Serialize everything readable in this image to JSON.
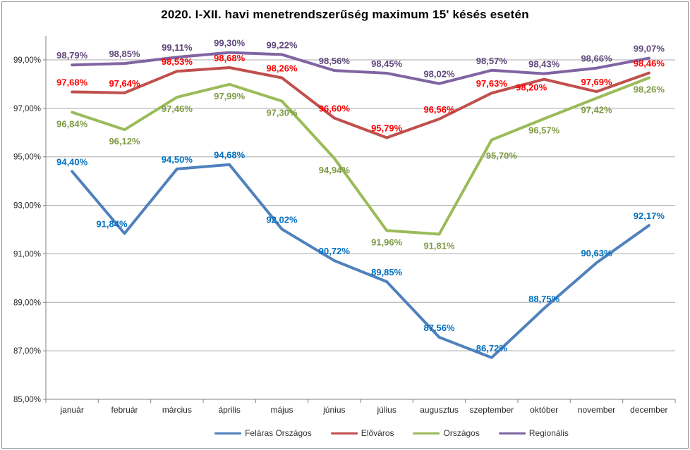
{
  "title": "2020. I-XII. havi menetrendszerűség  maximum  15' késés esetén",
  "chart_data": {
    "type": "line",
    "title": "2020. I-XII. havi menetrendszerűség  maximum  15' késés esetén",
    "categories": [
      "január",
      "február",
      "március",
      "április",
      "május",
      "június",
      "július",
      "augusztus",
      "szeptember",
      "október",
      "november",
      "december"
    ],
    "series": [
      {
        "name": "Feláras Országos",
        "line_color": "#4F81BD",
        "label_color": "#0070C0",
        "label_side": "above",
        "values": [
          94.4,
          91.84,
          94.5,
          94.68,
          92.02,
          90.72,
          89.85,
          87.56,
          86.72,
          88.75,
          90.63,
          92.17
        ],
        "labels": [
          "94,40%",
          "91,84%",
          "94,50%",
          "94,68%",
          "92,02%",
          "90,72%",
          "89,85%",
          "87,56%",
          "86,72%",
          "88,75%",
          "90,63%",
          "92,17%"
        ],
        "label_overrides": {
          "1": {
            "dx": -18
          }
        }
      },
      {
        "name": "Előváros",
        "line_color": "#C0504D",
        "label_color": "#FF0000",
        "label_side": "above",
        "values": [
          97.68,
          97.64,
          98.53,
          98.68,
          98.26,
          96.6,
          95.79,
          96.56,
          97.63,
          98.2,
          97.69,
          98.46
        ],
        "labels": [
          "97,68%",
          "97,64%",
          "98,53%",
          "98,68%",
          "98,26%",
          "96,60%",
          "95,79%",
          "96,56%",
          "97,63%",
          "98,20%",
          "97,69%",
          "98,46%"
        ],
        "label_overrides": {
          "9": {
            "side": "below",
            "dx": -18,
            "dy": 16
          }
        }
      },
      {
        "name": "Országos",
        "line_color": "#9BBB59",
        "label_color": "#7E9B44",
        "label_side": "below",
        "values": [
          96.84,
          96.12,
          97.46,
          97.99,
          97.3,
          94.94,
          91.96,
          91.81,
          95.7,
          96.57,
          97.42,
          98.26
        ],
        "labels": [
          "96,84%",
          "96,12%",
          "97,46%",
          "97,99%",
          "97,30%",
          "94,94%",
          "91,96%",
          "91,81%",
          "95,70%",
          "96,57%",
          "97,42%",
          "98,26%"
        ],
        "label_overrides": {
          "8": {
            "dx": 14,
            "dy": 27
          }
        }
      },
      {
        "name": "Regionális",
        "line_color": "#8064A2",
        "label_color": "#5F497A",
        "label_side": "above",
        "values": [
          98.79,
          98.85,
          99.11,
          99.3,
          99.22,
          98.56,
          98.45,
          98.02,
          98.57,
          98.43,
          98.66,
          99.07
        ],
        "labels": [
          "98,79%",
          "98,85%",
          "99,11%",
          "99,30%",
          "99,22%",
          "98,56%",
          "98,45%",
          "98,02%",
          "98,57%",
          "98,43%",
          "98,66%",
          "99,07%"
        ],
        "label_overrides": {}
      }
    ],
    "ylim": [
      85,
      100
    ],
    "y_ticks": [
      99,
      97,
      95,
      93,
      91,
      89,
      87,
      85
    ],
    "y_tick_labels": [
      "99,00%",
      "97,00%",
      "95,00%",
      "93,00%",
      "91,00%",
      "89,00%",
      "87,00%",
      "85,00%"
    ],
    "grid": true,
    "legend_position": "bottom",
    "value_format": "percent-comma-2dp"
  },
  "colors": {
    "grid": "#A8A8A8",
    "axis": "#808080",
    "tick_label": "#262626",
    "frame_border": "#8C8C8C",
    "background": "#FFFFFF",
    "legend_text": "#333333"
  }
}
